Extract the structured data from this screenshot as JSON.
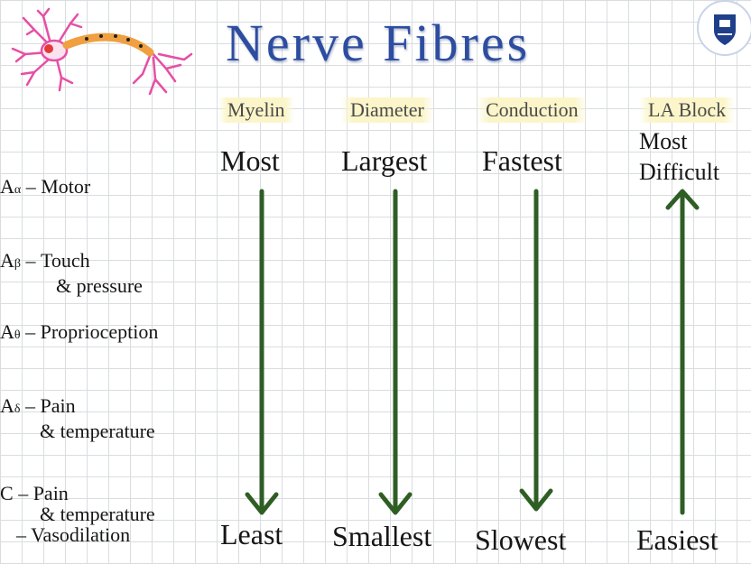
{
  "title": "Nerve Fibres",
  "columns": [
    {
      "header": "Myelin",
      "top": "Most",
      "bottom": "Least",
      "direction": "down"
    },
    {
      "header": "Diameter",
      "top": "Largest",
      "bottom": "Smallest",
      "direction": "down"
    },
    {
      "header": "Conduction",
      "top": "Fastest",
      "bottom": "Slowest",
      "direction": "down"
    },
    {
      "header": "LA Block",
      "top_line1": "Most",
      "top_line2": "Difficult",
      "bottom": "Easiest",
      "direction": "up"
    }
  ],
  "rows": [
    {
      "prefix": "A",
      "sub": "α",
      "line1": "– Motor"
    },
    {
      "prefix": "A",
      "sub": "β",
      "line1": "– Touch",
      "line2": "& pressure"
    },
    {
      "prefix": "A",
      "sub": "θ",
      "line1": "– Proprioception"
    },
    {
      "prefix": "A",
      "sub": "δ",
      "line1": "– Pain",
      "line2": "& temperature"
    },
    {
      "prefix": "C",
      "sub": "",
      "line1": "– Pain",
      "line2": "& temperature",
      "line3": "– Vasodilation"
    }
  ],
  "colors": {
    "title": "#2d4da0",
    "arrow": "#2f5e24",
    "header_highlight": "#fbf5c9",
    "neuron": "#e64fa5",
    "axon": "#f0a040",
    "nucleus": "#e23a3a"
  },
  "icons": [
    "neuron-icon",
    "university-crest-logo"
  ]
}
